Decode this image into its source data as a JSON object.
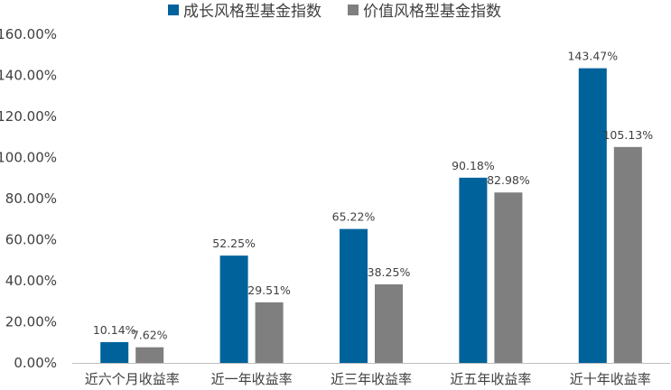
{
  "chart_data": {
    "type": "bar",
    "title": "",
    "xlabel": "",
    "ylabel": "",
    "categories": [
      "近六个月收益率",
      "近一年收益率",
      "近三年收益率",
      "近五年收益率",
      "近十年收益率"
    ],
    "series": [
      {
        "name": "成长风格型基金指数",
        "color": "#00629b",
        "values": [
          10.14,
          52.25,
          65.22,
          90.18,
          143.47
        ],
        "labels": [
          "10.14%",
          "52.25%",
          "65.22%",
          "90.18%",
          "143.47%"
        ]
      },
      {
        "name": "价值风格型基金指数",
        "color": "#7f7f7f",
        "values": [
          7.62,
          29.51,
          38.25,
          82.98,
          105.13
        ],
        "labels": [
          "7.62%",
          "29.51%",
          "38.25%",
          "82.98%",
          "105.13%"
        ]
      }
    ],
    "ylim": [
      0,
      160
    ],
    "yticks": [
      "0.00%",
      "20.00%",
      "40.00%",
      "60.00%",
      "80.00%",
      "100.00%",
      "120.00%",
      "140.00%",
      "160.00%"
    ],
    "grid": false,
    "legend_position": "top-center"
  }
}
